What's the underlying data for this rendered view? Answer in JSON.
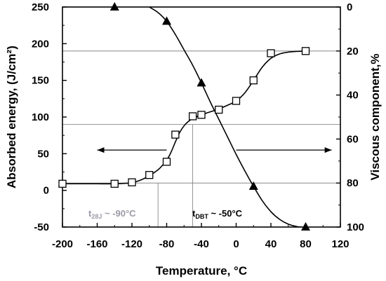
{
  "chart_data": {
    "type": "line",
    "xlabel": "Temperature, °C",
    "ylabel_left": "Absorbed energy, (J/cm²)",
    "ylabel_right": "Viscous component,%",
    "xlim": [
      -200,
      120
    ],
    "ylim_left": [
      -50,
      250
    ],
    "ylim_right": [
      100,
      0
    ],
    "x_ticks": [
      -200,
      -160,
      -120,
      -80,
      -40,
      0,
      40,
      80,
      120
    ],
    "x_tick_labels": [
      "-200",
      "-160",
      "-120",
      "-80",
      "-40",
      "0",
      "40",
      "80",
      "120"
    ],
    "y_left_ticks": [
      -50,
      0,
      50,
      100,
      150,
      200,
      250
    ],
    "y_left_tick_labels": [
      "-50",
      "0",
      "50",
      "100",
      "150",
      "200",
      "250"
    ],
    "y_right_ticks": [
      0,
      20,
      40,
      60,
      80,
      100
    ],
    "y_right_tick_labels": [
      "0",
      "20",
      "40",
      "60",
      "80",
      "100"
    ],
    "grid": false,
    "reference_lines_left_units": [
      10,
      90,
      190
    ],
    "series": [
      {
        "axis": "left",
        "marker": "square-open",
        "x": [
          -200,
          -140,
          -120,
          -100,
          -80,
          -70,
          -50,
          -40,
          -20,
          0,
          20,
          40,
          80
        ],
        "y": [
          9,
          9,
          11,
          21,
          39,
          76,
          101,
          103,
          110,
          122,
          150,
          187,
          190
        ],
        "curve_x": [
          -200,
          -180,
          -160,
          -140,
          -130,
          -120,
          -110,
          -100,
          -90,
          -85,
          -80,
          -75,
          -70,
          -65,
          -60,
          -55,
          -50,
          -40,
          -30,
          -20,
          -10,
          0,
          10,
          20,
          30,
          40,
          50,
          60,
          70,
          80
        ],
        "curve_y": [
          9,
          9,
          9,
          9,
          9.5,
          10.5,
          14,
          20,
          28,
          34,
          41,
          52,
          66,
          79,
          88,
          94,
          98,
          103,
          107,
          111,
          116,
          122,
          133,
          150,
          168,
          180,
          186,
          188.5,
          189.5,
          190
        ]
      },
      {
        "axis": "right",
        "marker": "triangle-filled",
        "x": [
          -140,
          -80,
          -40,
          20,
          80
        ],
        "y": [
          0,
          6.5,
          34.5,
          81.5,
          100
        ],
        "curve_x": [
          -100,
          -90,
          -80,
          -70,
          -60,
          -50,
          -40,
          -30,
          -20,
          -10,
          0,
          10,
          20,
          30,
          40,
          50,
          60,
          70,
          75
        ],
        "curve_y": [
          0,
          2.5,
          6.5,
          12.5,
          19.5,
          26.5,
          34.5,
          43,
          51,
          59,
          67,
          74.5,
          81.5,
          88,
          93,
          96.5,
          98.7,
          99.8,
          100
        ]
      }
    ],
    "arrows": [
      {
        "direction": "left",
        "x_from": -80,
        "x_to": -160,
        "y_left": 55
      },
      {
        "direction": "right",
        "x_from": 0,
        "x_to": 110,
        "y_left": 55
      }
    ],
    "markers": [
      {
        "x": -90,
        "y_left_top": 10
      },
      {
        "x": -50,
        "y_left_top": 90
      }
    ]
  },
  "labels": {
    "t28_main": "t",
    "t28_sub": "28J",
    "t28_val": " ~ -90°C",
    "tdbt_main": "t",
    "tdbt_sub": "DBT",
    "tdbt_val": " ~ -50°C"
  },
  "colors": {
    "t28_color": "#9a9aa8",
    "tdbt_color": "#000000",
    "ref_line": "#777777"
  }
}
